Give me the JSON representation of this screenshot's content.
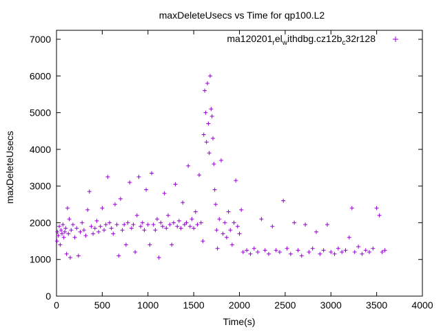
{
  "chart_data": {
    "type": "scatter",
    "title": "maxDeleteUsecs vs Time for qp100.L2",
    "xlabel": "Time(s)",
    "ylabel": "maxDeleteUsecs",
    "xlim": [
      0,
      4000
    ],
    "ylim": [
      0,
      7000
    ],
    "xticks": [
      "0",
      "500",
      "1000",
      "1500",
      "2000",
      "2500",
      "3000",
      "3500",
      "4000"
    ],
    "yticks": [
      "0",
      "1000",
      "2000",
      "3000",
      "4000",
      "5000",
      "6000",
      "7000"
    ],
    "legend": {
      "label_parts": [
        "ma120201",
        "r",
        "el",
        "w",
        "ithdbg.cz12b",
        "c",
        "32r128"
      ],
      "placement": "top-right"
    },
    "series_color": "#9400d3",
    "points": [
      [
        5,
        1500
      ],
      [
        10,
        1750
      ],
      [
        20,
        1650
      ],
      [
        30,
        1900
      ],
      [
        40,
        1400
      ],
      [
        50,
        1800
      ],
      [
        60,
        1700
      ],
      [
        70,
        1950
      ],
      [
        80,
        1600
      ],
      [
        90,
        1750
      ],
      [
        100,
        1850
      ],
      [
        110,
        1150
      ],
      [
        120,
        2400
      ],
      [
        130,
        1700
      ],
      [
        140,
        2100
      ],
      [
        150,
        1050
      ],
      [
        160,
        1800
      ],
      [
        180,
        1950
      ],
      [
        200,
        1600
      ],
      [
        220,
        1850
      ],
      [
        240,
        1100
      ],
      [
        260,
        1750
      ],
      [
        280,
        2000
      ],
      [
        300,
        1800
      ],
      [
        320,
        1650
      ],
      [
        340,
        2350
      ],
      [
        360,
        2850
      ],
      [
        380,
        1900
      ],
      [
        400,
        1700
      ],
      [
        420,
        1850
      ],
      [
        440,
        2050
      ],
      [
        460,
        1750
      ],
      [
        480,
        1900
      ],
      [
        500,
        2400
      ],
      [
        520,
        1800
      ],
      [
        540,
        1950
      ],
      [
        560,
        3250
      ],
      [
        580,
        2000
      ],
      [
        600,
        1850
      ],
      [
        620,
        1700
      ],
      [
        640,
        2500
      ],
      [
        660,
        1950
      ],
      [
        680,
        1100
      ],
      [
        700,
        2650
      ],
      [
        720,
        1800
      ],
      [
        740,
        1950
      ],
      [
        760,
        1400
      ],
      [
        780,
        2000
      ],
      [
        800,
        3100
      ],
      [
        820,
        1850
      ],
      [
        840,
        1950
      ],
      [
        860,
        1200
      ],
      [
        880,
        2200
      ],
      [
        900,
        3250
      ],
      [
        920,
        1900
      ],
      [
        940,
        2000
      ],
      [
        960,
        1800
      ],
      [
        980,
        2900
      ],
      [
        1000,
        1950
      ],
      [
        1020,
        1400
      ],
      [
        1040,
        3350
      ],
      [
        1060,
        1950
      ],
      [
        1080,
        1800
      ],
      [
        1100,
        2100
      ],
      [
        1120,
        1050
      ],
      [
        1140,
        2000
      ],
      [
        1160,
        1900
      ],
      [
        1180,
        2800
      ],
      [
        1200,
        1850
      ],
      [
        1220,
        2200
      ],
      [
        1240,
        1950
      ],
      [
        1260,
        1400
      ],
      [
        1280,
        2000
      ],
      [
        1300,
        3050
      ],
      [
        1320,
        1900
      ],
      [
        1340,
        2050
      ],
      [
        1360,
        1850
      ],
      [
        1380,
        2550
      ],
      [
        1400,
        1950
      ],
      [
        1420,
        2000
      ],
      [
        1440,
        3550
      ],
      [
        1460,
        1900
      ],
      [
        1480,
        2100
      ],
      [
        1500,
        1850
      ],
      [
        1520,
        2300
      ],
      [
        1540,
        1950
      ],
      [
        1560,
        3300
      ],
      [
        1580,
        2000
      ],
      [
        1600,
        1500
      ],
      [
        1610,
        4400
      ],
      [
        1620,
        5600
      ],
      [
        1630,
        5000
      ],
      [
        1640,
        4200
      ],
      [
        1650,
        5800
      ],
      [
        1660,
        4700
      ],
      [
        1670,
        3900
      ],
      [
        1680,
        6000
      ],
      [
        1690,
        5100
      ],
      [
        1700,
        4900
      ],
      [
        1710,
        4300
      ],
      [
        1720,
        3600
      ],
      [
        1730,
        2900
      ],
      [
        1740,
        2500
      ],
      [
        1750,
        1800
      ],
      [
        1760,
        1300
      ],
      [
        1780,
        2100
      ],
      [
        1800,
        3700
      ],
      [
        1820,
        1700
      ],
      [
        1840,
        2000
      ],
      [
        1860,
        1600
      ],
      [
        1880,
        2300
      ],
      [
        1900,
        1800
      ],
      [
        1920,
        1400
      ],
      [
        1940,
        2000
      ],
      [
        1960,
        3150
      ],
      [
        1980,
        1900
      ],
      [
        2000,
        1700
      ],
      [
        2020,
        2350
      ],
      [
        2040,
        1200
      ],
      [
        2080,
        1250
      ],
      [
        2120,
        1150
      ],
      [
        2160,
        1300
      ],
      [
        2200,
        1200
      ],
      [
        2240,
        2100
      ],
      [
        2280,
        1250
      ],
      [
        2320,
        1150
      ],
      [
        2360,
        1900
      ],
      [
        2400,
        1250
      ],
      [
        2440,
        1200
      ],
      [
        2480,
        2600
      ],
      [
        2520,
        1300
      ],
      [
        2560,
        1150
      ],
      [
        2600,
        2000
      ],
      [
        2640,
        1250
      ],
      [
        2680,
        1100
      ],
      [
        2720,
        1950
      ],
      [
        2760,
        1200
      ],
      [
        2800,
        1300
      ],
      [
        2840,
        1750
      ],
      [
        2880,
        1150
      ],
      [
        2920,
        1250
      ],
      [
        2960,
        1950
      ],
      [
        3000,
        1200
      ],
      [
        3040,
        1150
      ],
      [
        3080,
        1300
      ],
      [
        3120,
        1200
      ],
      [
        3160,
        1250
      ],
      [
        3200,
        1600
      ],
      [
        3230,
        2400
      ],
      [
        3260,
        1200
      ],
      [
        3300,
        1350
      ],
      [
        3340,
        1150
      ],
      [
        3380,
        1250
      ],
      [
        3420,
        1200
      ],
      [
        3460,
        1300
      ],
      [
        3500,
        2400
      ],
      [
        3530,
        2200
      ],
      [
        3560,
        1200
      ],
      [
        3590,
        1250
      ]
    ]
  }
}
